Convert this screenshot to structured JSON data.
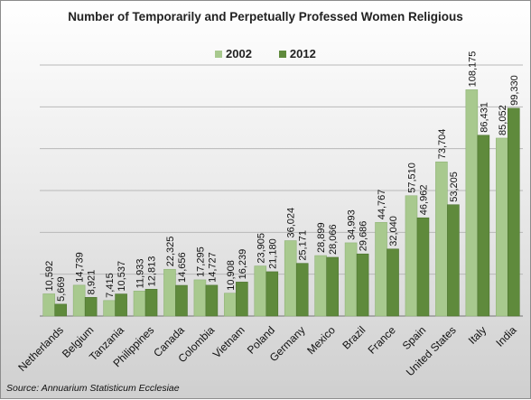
{
  "chart_data": {
    "type": "bar",
    "title": "Number of Temporarily and Perpetually Professed Women Religious",
    "categories": [
      "Netherlands",
      "Belgium",
      "Tanzania",
      "Philippines",
      "Canada",
      "Colombia",
      "Vietnam",
      "Poland",
      "Germany",
      "Mexico",
      "Brazil",
      "France",
      "Spain",
      "United States",
      "Italy",
      "India"
    ],
    "series": [
      {
        "name": "2002",
        "color": "#a8c98e",
        "values": [
          10592,
          14739,
          7415,
          11933,
          22325,
          17295,
          10908,
          23905,
          36024,
          28899,
          34993,
          44767,
          57510,
          73704,
          108175,
          85052
        ]
      },
      {
        "name": "2012",
        "color": "#5f8a3c",
        "values": [
          5669,
          8921,
          10537,
          12813,
          14656,
          14727,
          16239,
          21180,
          25171,
          28066,
          29686,
          32040,
          46962,
          53205,
          86431,
          99330
        ]
      }
    ],
    "value_labels": {
      "2002": [
        "10,592",
        "14,739",
        "7,415",
        "11,933",
        "22,325",
        "17,295",
        "10,908",
        "23,905",
        "36,024",
        "28,899",
        "34,993",
        "44,767",
        "57,510",
        "73,704",
        "108,175",
        "85,052"
      ],
      "2012": [
        "5,669",
        "8,921",
        "10,537",
        "12,813",
        "14,656",
        "14,727",
        "16,239",
        "21,180",
        "25,171",
        "28,066",
        "29,686",
        "32,040",
        "46,962",
        "53,205",
        "86,431",
        "99,330"
      ]
    },
    "ylim": [
      0,
      120000
    ],
    "gridlines": [
      20000,
      40000,
      60000,
      80000,
      100000,
      120000
    ],
    "grid": true,
    "legend_position": "top",
    "source": "Source: Annuarium Statisticum Ecclesiae"
  }
}
